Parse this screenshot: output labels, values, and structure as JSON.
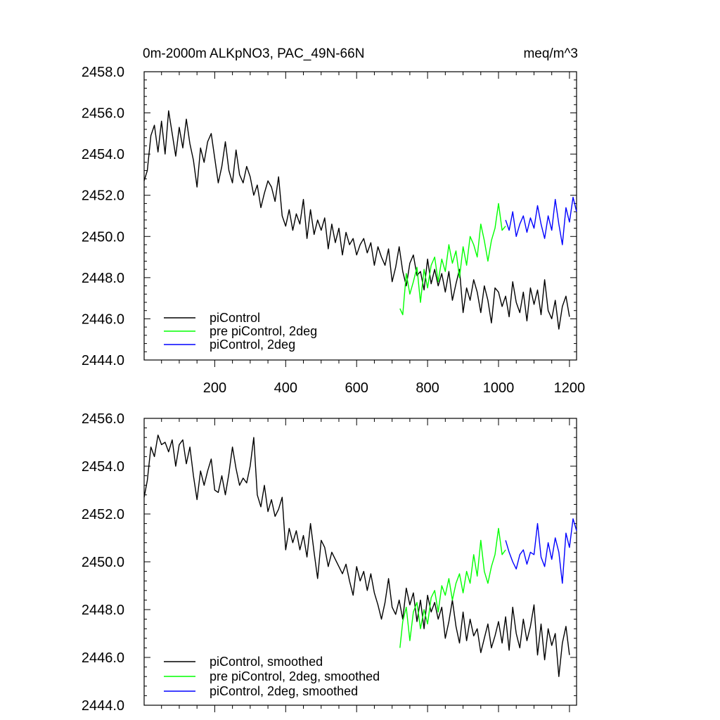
{
  "figure": {
    "title_left": "0m-2000m ALKpNO3, PAC_49N-66N",
    "title_right": "meq/m^3"
  },
  "chart_data": [
    {
      "type": "line",
      "title": "0m-2000m ALKpNO3, PAC_49N-66N",
      "units": "meq/m^3",
      "xlabel": "",
      "ylabel": "",
      "xlim": [
        1,
        1220
      ],
      "ylim": [
        2444.0,
        2458.0
      ],
      "xticks": [
        200,
        400,
        600,
        800,
        1000,
        1200
      ],
      "xtick_labels": [
        "200",
        "400",
        "600",
        "800",
        "1000",
        "1200"
      ],
      "yticks": [
        2444.0,
        2446.0,
        2448.0,
        2450.0,
        2452.0,
        2454.0,
        2456.0,
        2458.0
      ],
      "ytick_labels": [
        "2444.0",
        "2446.0",
        "2448.0",
        "2450.0",
        "2452.0",
        "2454.0",
        "2456.0",
        "2458.0"
      ],
      "legend_position": "bottom-left",
      "series": [
        {
          "name": "piControl",
          "color": "#000000",
          "x": [
            1,
            10,
            20,
            30,
            40,
            50,
            60,
            70,
            80,
            90,
            100,
            110,
            120,
            130,
            140,
            150,
            160,
            170,
            180,
            190,
            200,
            210,
            220,
            230,
            240,
            250,
            260,
            270,
            280,
            290,
            300,
            310,
            320,
            330,
            340,
            350,
            360,
            370,
            380,
            390,
            400,
            410,
            420,
            430,
            440,
            450,
            460,
            470,
            480,
            490,
            500,
            510,
            520,
            530,
            540,
            550,
            560,
            570,
            580,
            590,
            600,
            610,
            620,
            630,
            640,
            650,
            660,
            670,
            680,
            690,
            700,
            710,
            720,
            730,
            740,
            750,
            760,
            770,
            780,
            790,
            800,
            810,
            820,
            830,
            840,
            850,
            860,
            870,
            880,
            890,
            900,
            910,
            920,
            930,
            940,
            950,
            960,
            970,
            980,
            990,
            1000,
            1010,
            1020,
            1030,
            1040,
            1050,
            1060,
            1070,
            1080,
            1090,
            1100,
            1110,
            1120,
            1130,
            1140,
            1150,
            1160,
            1170,
            1180,
            1190,
            1200
          ],
          "values": [
            2452.7,
            2453.2,
            2454.9,
            2455.4,
            2454.1,
            2455.6,
            2454.0,
            2456.1,
            2455.0,
            2453.9,
            2455.3,
            2454.3,
            2455.7,
            2454.5,
            2453.7,
            2452.4,
            2454.3,
            2453.6,
            2454.6,
            2455.0,
            2453.8,
            2452.6,
            2453.4,
            2454.6,
            2453.2,
            2452.6,
            2454.2,
            2453.0,
            2452.6,
            2453.4,
            2452.9,
            2452.0,
            2452.5,
            2451.4,
            2452.1,
            2452.7,
            2452.4,
            2451.7,
            2452.9,
            2451.0,
            2450.5,
            2451.3,
            2450.3,
            2451.1,
            2450.6,
            2451.8,
            2449.9,
            2451.3,
            2450.1,
            2450.8,
            2450.3,
            2450.9,
            2449.4,
            2450.6,
            2449.7,
            2450.4,
            2449.1,
            2450.2,
            2449.6,
            2449.9,
            2449.1,
            2449.6,
            2449.9,
            2449.2,
            2449.7,
            2448.6,
            2449.5,
            2449.0,
            2448.6,
            2449.4,
            2447.8,
            2448.5,
            2449.5,
            2448.3,
            2447.6,
            2448.7,
            2449.1,
            2448.1,
            2448.3,
            2447.4,
            2448.9,
            2447.7,
            2448.4,
            2447.6,
            2448.2,
            2447.3,
            2448.3,
            2446.9,
            2447.7,
            2448.4,
            2446.3,
            2447.5,
            2446.9,
            2447.9,
            2447.3,
            2446.3,
            2447.6,
            2446.9,
            2445.8,
            2447.5,
            2447.3,
            2446.6,
            2447.1,
            2446.1,
            2447.8,
            2446.8,
            2446.3,
            2447.3,
            2445.9,
            2447.5,
            2446.7,
            2447.4,
            2446.2,
            2447.9,
            2446.4,
            2446.0,
            2446.9,
            2445.5,
            2446.6,
            2447.1,
            2446.1
          ]
        },
        {
          "name": "pre piControl, 2deg",
          "color": "#00ff00",
          "x": [
            722,
            730,
            740,
            750,
            760,
            770,
            780,
            790,
            800,
            810,
            820,
            830,
            840,
            850,
            860,
            870,
            880,
            890,
            900,
            910,
            920,
            930,
            940,
            950,
            960,
            970,
            980,
            990,
            1000,
            1010,
            1020
          ],
          "values": [
            2446.5,
            2446.2,
            2448.2,
            2447.2,
            2447.8,
            2448.5,
            2446.8,
            2448.4,
            2447.5,
            2448.6,
            2449.0,
            2447.8,
            2448.9,
            2448.3,
            2449.6,
            2448.7,
            2449.3,
            2448.0,
            2449.5,
            2448.6,
            2450.0,
            2449.6,
            2449.0,
            2450.6,
            2449.8,
            2448.8,
            2449.8,
            2450.4,
            2451.6,
            2450.3,
            2450.5
          ]
        },
        {
          "name": "piControl, 2deg",
          "color": "#0000ff",
          "x": [
            1020,
            1030,
            1040,
            1050,
            1060,
            1070,
            1080,
            1090,
            1100,
            1110,
            1120,
            1130,
            1140,
            1150,
            1160,
            1170,
            1180,
            1190,
            1200,
            1210,
            1220
          ],
          "values": [
            2450.8,
            2450.3,
            2451.2,
            2450.0,
            2450.6,
            2451.0,
            2450.2,
            2450.9,
            2450.4,
            2451.5,
            2450.6,
            2449.9,
            2451.0,
            2450.3,
            2451.8,
            2450.6,
            2449.6,
            2451.4,
            2450.7,
            2451.9,
            2451.2
          ]
        }
      ]
    },
    {
      "type": "line",
      "title": "",
      "xlabel": "",
      "ylabel": "",
      "xlim": [
        1,
        1220
      ],
      "ylim": [
        2444.0,
        2456.0
      ],
      "xticks": [
        200,
        400,
        600,
        800,
        1000,
        1200
      ],
      "yticks": [
        2444.0,
        2446.0,
        2448.0,
        2450.0,
        2452.0,
        2454.0,
        2456.0
      ],
      "ytick_labels": [
        "2444.0",
        "2446.0",
        "2448.0",
        "2450.0",
        "2452.0",
        "2454.0",
        "2456.0"
      ],
      "legend_position": "bottom-left",
      "series": [
        {
          "name": "piControl, smoothed",
          "color": "#000000",
          "x": [
            1,
            10,
            20,
            30,
            40,
            50,
            60,
            70,
            80,
            90,
            100,
            110,
            120,
            130,
            140,
            150,
            160,
            170,
            180,
            190,
            200,
            210,
            220,
            230,
            240,
            250,
            260,
            270,
            280,
            290,
            300,
            310,
            320,
            330,
            340,
            350,
            360,
            370,
            380,
            390,
            400,
            410,
            420,
            430,
            440,
            450,
            460,
            470,
            480,
            490,
            500,
            510,
            520,
            530,
            540,
            550,
            560,
            570,
            580,
            590,
            600,
            610,
            620,
            630,
            640,
            650,
            660,
            670,
            680,
            690,
            700,
            710,
            720,
            730,
            740,
            750,
            760,
            770,
            780,
            790,
            800,
            810,
            820,
            830,
            840,
            850,
            860,
            870,
            880,
            890,
            900,
            910,
            920,
            930,
            940,
            950,
            960,
            970,
            980,
            990,
            1000,
            1010,
            1020,
            1030,
            1040,
            1050,
            1060,
            1070,
            1080,
            1090,
            1100,
            1110,
            1120,
            1130,
            1140,
            1150,
            1160,
            1170,
            1180,
            1190,
            1200
          ],
          "values": [
            2452.7,
            2453.4,
            2454.8,
            2454.4,
            2455.3,
            2454.9,
            2455.0,
            2454.6,
            2455.1,
            2454.0,
            2454.9,
            2455.1,
            2454.1,
            2454.8,
            2453.6,
            2452.6,
            2453.8,
            2453.2,
            2453.8,
            2454.3,
            2453.0,
            2452.9,
            2453.6,
            2452.8,
            2453.7,
            2454.8,
            2453.9,
            2453.2,
            2453.5,
            2453.3,
            2454.0,
            2455.2,
            2452.8,
            2452.3,
            2453.2,
            2452.1,
            2452.6,
            2451.9,
            2452.2,
            2452.7,
            2450.5,
            2451.4,
            2450.8,
            2451.3,
            2450.5,
            2451.1,
            2450.2,
            2451.6,
            2450.4,
            2449.3,
            2450.9,
            2450.6,
            2449.8,
            2450.4,
            2450.1,
            2449.8,
            2449.5,
            2449.9,
            2449.2,
            2448.6,
            2449.8,
            2449.2,
            2449.6,
            2448.8,
            2449.5,
            2448.7,
            2448.2,
            2447.6,
            2448.3,
            2449.3,
            2448.1,
            2447.8,
            2448.4,
            2447.6,
            2448.9,
            2448.2,
            2448.7,
            2447.5,
            2448.4,
            2447.2,
            2448.6,
            2447.9,
            2448.3,
            2447.6,
            2448.1,
            2446.8,
            2447.5,
            2448.4,
            2447.3,
            2446.6,
            2447.9,
            2446.7,
            2447.6,
            2446.9,
            2447.2,
            2446.2,
            2446.8,
            2447.4,
            2446.4,
            2446.9,
            2447.5,
            2446.6,
            2447.7,
            2446.3,
            2448.1,
            2447.0,
            2446.4,
            2447.6,
            2446.7,
            2447.3,
            2448.2,
            2446.1,
            2447.4,
            2445.9,
            2447.2,
            2446.5,
            2447.0,
            2445.2,
            2446.6,
            2447.3,
            2446.1
          ]
        },
        {
          "name": "pre piControl, 2deg, smoothed",
          "color": "#00ff00",
          "x": [
            722,
            730,
            740,
            750,
            760,
            770,
            780,
            790,
            800,
            810,
            820,
            830,
            840,
            850,
            860,
            870,
            880,
            890,
            900,
            910,
            920,
            930,
            940,
            950,
            960,
            970,
            980,
            990,
            1000,
            1010,
            1020
          ],
          "values": [
            2446.4,
            2447.5,
            2448.1,
            2446.7,
            2447.9,
            2448.3,
            2447.2,
            2448.0,
            2447.4,
            2448.5,
            2448.8,
            2447.9,
            2449.0,
            2448.6,
            2449.3,
            2448.4,
            2449.1,
            2449.5,
            2448.7,
            2449.6,
            2449.1,
            2450.3,
            2449.4,
            2450.9,
            2449.6,
            2449.1,
            2449.8,
            2450.3,
            2451.4,
            2450.3,
            2450.5
          ]
        },
        {
          "name": "piControl, 2deg, smoothed",
          "color": "#0000ff",
          "x": [
            1020,
            1030,
            1040,
            1050,
            1060,
            1070,
            1080,
            1090,
            1100,
            1110,
            1120,
            1130,
            1140,
            1150,
            1160,
            1170,
            1180,
            1190,
            1200,
            1210,
            1220
          ],
          "values": [
            2450.9,
            2450.4,
            2450.0,
            2449.7,
            2450.3,
            2450.5,
            2449.9,
            2450.4,
            2450.3,
            2451.6,
            2450.2,
            2449.8,
            2450.8,
            2450.1,
            2451.0,
            2450.4,
            2449.1,
            2451.2,
            2450.6,
            2451.8,
            2451.3
          ]
        }
      ]
    }
  ]
}
